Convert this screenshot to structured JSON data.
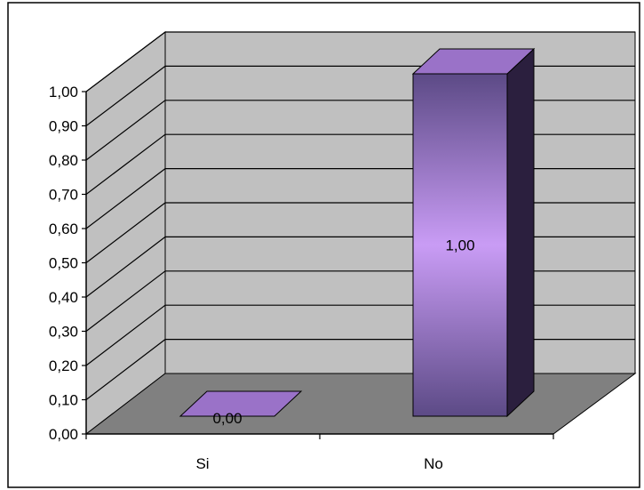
{
  "chart_data": {
    "type": "bar",
    "title": "",
    "xlabel": "",
    "ylabel": "",
    "categories": [
      "Si",
      "No"
    ],
    "values": [
      0.0,
      1.0
    ],
    "value_labels": [
      "0,00",
      "1,00"
    ],
    "ylim": [
      0,
      1.0
    ],
    "y_ticks": [
      0.0,
      0.1,
      0.2,
      0.3,
      0.4,
      0.5,
      0.6,
      0.7,
      0.8,
      0.9,
      1.0
    ],
    "y_tick_labels": [
      "0,00",
      "0,10",
      "0,20",
      "0,30",
      "0,40",
      "0,50",
      "0,60",
      "0,70",
      "0,80",
      "0,90",
      "1,00"
    ],
    "grid": true,
    "legend": "none",
    "three_d": true
  },
  "colors": {
    "wall": "#c0c0c0",
    "floor": "#808080",
    "bar_front_edge": "#5c4a86",
    "bar_front_center": "#c99cf5",
    "bar_side": "#2b1f3e",
    "bar_top": "#9a72c8",
    "gridline": "#000000"
  }
}
